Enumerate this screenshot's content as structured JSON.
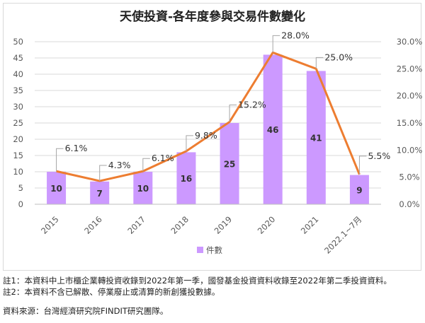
{
  "chart_data": {
    "type": "bar",
    "title": "天使投資-各年度參與交易件數變化",
    "categories": [
      "2015",
      "2016",
      "2017",
      "2018",
      "2019",
      "2020",
      "2021",
      "2022.1~7月"
    ],
    "series": [
      {
        "name": "件數",
        "type": "bar",
        "axis": "left",
        "values": [
          10,
          7,
          10,
          16,
          25,
          46,
          41,
          9
        ],
        "color": "#cc99ff"
      },
      {
        "name": "",
        "type": "line",
        "axis": "right",
        "values": [
          6.1,
          4.3,
          6.1,
          9.8,
          15.2,
          28.0,
          25.0,
          5.5
        ],
        "labels": [
          "6.1%",
          "4.3%",
          "6.1%",
          "9.8%",
          "15.2%",
          "28.0%",
          "25.0%",
          "5.5%"
        ],
        "color": "#ed7d31"
      }
    ],
    "ylim": [
      0,
      50
    ],
    "y2lim": [
      0,
      30
    ],
    "y_ticks": [
      "0",
      "5",
      "10",
      "15",
      "20",
      "25",
      "30",
      "35",
      "40",
      "45",
      "50"
    ],
    "y2_ticks": [
      "0.0%",
      "5.0%",
      "10.0%",
      "15.0%",
      "20.0%",
      "25.0%",
      "30.0%"
    ],
    "grid": true,
    "legend_position": "bottom"
  },
  "notes": {
    "note1": "註1：本資料中上市櫃企業轉投資收錄到2022年第一季，國發基金投資資料收錄至2022年第二季投資資料。",
    "note2": "註2：本資料不含已解散、停業廢止或清算的新創獲投數據。",
    "source": "資料來源：台灣經濟研究院FINDIT研究團隊。"
  }
}
